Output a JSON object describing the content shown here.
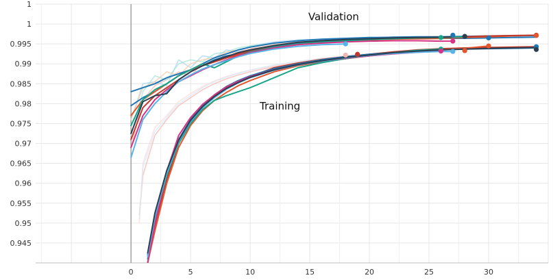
{
  "chart_data": {
    "type": "line",
    "title": "",
    "xlabel": "",
    "ylabel": "",
    "xlim": [
      -8,
      35
    ],
    "ylim": [
      0.94,
      1.005
    ],
    "x_ticks": [
      "0",
      "5",
      "10",
      "15",
      "20",
      "25",
      "30"
    ],
    "x_tick_values": [
      0,
      5,
      10,
      15,
      20,
      25,
      30
    ],
    "y_ticks": [
      "1",
      "1",
      "0.995",
      "0.99",
      "0.985",
      "0.98",
      "0.975",
      "0.97",
      "0.965",
      "0.96",
      "0.955",
      "0.95",
      "0.945"
    ],
    "y_tick_values": [
      1.005,
      1.0,
      0.995,
      0.99,
      0.985,
      0.98,
      0.975,
      0.97,
      0.965,
      0.96,
      0.955,
      0.95,
      0.945
    ],
    "grid": true,
    "annotations": [
      {
        "text": "Validation",
        "x": 17,
        "y": 1.001
      },
      {
        "text": "Training",
        "x": 12.5,
        "y": 0.9785
      }
    ],
    "x_vertical_line": 0,
    "validation_series": [
      {
        "color": "#1f77b4",
        "x": [
          0,
          1,
          2,
          3,
          4,
          5,
          6,
          7,
          8,
          9,
          10,
          12,
          14,
          16,
          18,
          20,
          22,
          24,
          26,
          28,
          30,
          32,
          34
        ],
        "y": [
          0.983,
          0.984,
          0.985,
          0.9865,
          0.9875,
          0.9885,
          0.9895,
          0.991,
          0.992,
          0.9925,
          0.9932,
          0.9945,
          0.9952,
          0.9958,
          0.9962,
          0.9965,
          0.9967,
          0.9968,
          0.9968,
          0.9969,
          0.997,
          0.997,
          0.9971
        ]
      },
      {
        "color": "#1f77b4",
        "x": [
          0,
          1,
          2,
          3,
          4,
          5,
          6,
          7,
          8,
          9,
          10,
          12,
          14,
          16,
          18,
          20,
          22,
          24,
          26,
          28,
          30,
          32,
          34
        ],
        "y": [
          0.9795,
          0.9815,
          0.983,
          0.985,
          0.987,
          0.9885,
          0.99,
          0.9915,
          0.9925,
          0.9935,
          0.9942,
          0.9952,
          0.9958,
          0.9962,
          0.9964,
          0.9966,
          0.9966,
          0.9965,
          0.9964,
          0.9964,
          0.9965,
          0.9966,
          0.9967
        ]
      },
      {
        "color": "#e4572e",
        "x": [
          0,
          1,
          2,
          3,
          4,
          5,
          6,
          7,
          8,
          9,
          10,
          12,
          14,
          16,
          18,
          20,
          22,
          24,
          26,
          28,
          30,
          32,
          34
        ],
        "y": [
          0.977,
          0.981,
          0.983,
          0.985,
          0.987,
          0.9885,
          0.9895,
          0.9905,
          0.9915,
          0.9922,
          0.993,
          0.994,
          0.9948,
          0.9953,
          0.9957,
          0.996,
          0.9962,
          0.9963,
          0.9964,
          0.9966,
          0.9968,
          0.997,
          0.9972
        ]
      },
      {
        "color": "#c0392b",
        "x": [
          0,
          1,
          2,
          3,
          4,
          5,
          6,
          7,
          8,
          9,
          10,
          12,
          14,
          16,
          18,
          20,
          22,
          24,
          26,
          28,
          30,
          32,
          34
        ],
        "y": [
          0.971,
          0.979,
          0.982,
          0.984,
          0.986,
          0.988,
          0.9895,
          0.9905,
          0.9915,
          0.9925,
          0.9932,
          0.9942,
          0.995,
          0.9955,
          0.9958,
          0.9961,
          0.9963,
          0.9965,
          0.9966,
          0.9968,
          0.997,
          0.9971,
          0.9972
        ]
      },
      {
        "color": "#17a589",
        "x": [
          0,
          1,
          2,
          3,
          4,
          5,
          6,
          7,
          8,
          9,
          10,
          12,
          14,
          16,
          18,
          20,
          22,
          24,
          26,
          28
        ],
        "y": [
          0.9745,
          0.981,
          0.9835,
          0.985,
          0.987,
          0.9885,
          0.99,
          0.989,
          0.9905,
          0.992,
          0.993,
          0.9942,
          0.995,
          0.9955,
          0.9958,
          0.9961,
          0.9963,
          0.9965,
          0.9966,
          0.9968
        ]
      },
      {
        "color": "#d63384",
        "x": [
          0,
          1,
          2,
          3,
          4,
          5,
          6,
          7,
          8,
          9,
          10,
          12,
          14,
          16,
          18,
          20,
          22,
          24,
          26,
          27
        ],
        "y": [
          0.969,
          0.977,
          0.981,
          0.9835,
          0.9855,
          0.987,
          0.9885,
          0.9898,
          0.991,
          0.992,
          0.9928,
          0.994,
          0.9948,
          0.9952,
          0.9955,
          0.9957,
          0.9958,
          0.9958,
          0.9957,
          0.9957
        ]
      },
      {
        "color": "#56b4e9",
        "x": [
          0,
          1,
          2,
          3,
          4,
          5,
          6,
          7,
          8,
          9,
          10,
          12,
          14,
          16,
          18
        ],
        "y": [
          0.9665,
          0.976,
          0.98,
          0.983,
          0.9855,
          0.9872,
          0.9887,
          0.9898,
          0.9908,
          0.9918,
          0.9926,
          0.9937,
          0.9944,
          0.9948,
          0.995
        ]
      },
      {
        "color": "#2c3e50",
        "x": [
          0,
          1,
          2,
          3,
          4,
          5,
          6,
          7,
          8,
          9,
          10,
          12,
          14,
          16,
          18,
          20,
          22,
          24,
          26,
          27
        ],
        "y": [
          0.9725,
          0.9805,
          0.982,
          0.9825,
          0.986,
          0.988,
          0.9895,
          0.9908,
          0.9918,
          0.9928,
          0.9935,
          0.9946,
          0.9954,
          0.9958,
          0.9961,
          0.9963,
          0.9965,
          0.9966,
          0.9967,
          0.9968
        ]
      }
    ],
    "training_series": [
      {
        "color": "#c0392b",
        "x": [
          1.4,
          2,
          3,
          4,
          5,
          6,
          7,
          8,
          9,
          10,
          12,
          14,
          16,
          18,
          20,
          22,
          24,
          26,
          28,
          30,
          32,
          34
        ],
        "y": [
          0.94,
          0.949,
          0.961,
          0.97,
          0.9755,
          0.979,
          0.9818,
          0.984,
          0.9855,
          0.9868,
          0.989,
          0.9902,
          0.9911,
          0.9918,
          0.9924,
          0.993,
          0.9935,
          0.9938,
          0.994,
          0.9941,
          0.9942,
          0.9943
        ]
      },
      {
        "color": "#e4572e",
        "x": [
          1.4,
          2,
          3,
          4,
          5,
          6,
          7,
          8,
          9,
          10,
          12,
          14,
          16,
          18,
          20,
          22,
          24,
          26,
          28,
          30
        ],
        "y": [
          0.94,
          0.948,
          0.96,
          0.969,
          0.9745,
          0.9782,
          0.9808,
          0.9828,
          0.9845,
          0.9858,
          0.988,
          0.9895,
          0.9905,
          0.9913,
          0.992,
          0.9926,
          0.9932,
          0.9936,
          0.9939,
          0.9945
        ]
      },
      {
        "color": "#1f77b4",
        "x": [
          1.4,
          2,
          3,
          4,
          5,
          6,
          7,
          8,
          9,
          10,
          12,
          14,
          16,
          18,
          20,
          22,
          24,
          26,
          28,
          30,
          32,
          34
        ],
        "y": [
          0.942,
          0.952,
          0.963,
          0.971,
          0.976,
          0.9795,
          0.9822,
          0.9843,
          0.9858,
          0.987,
          0.9888,
          0.99,
          0.991,
          0.9918,
          0.9924,
          0.9928,
          0.9932,
          0.9935,
          0.9937,
          0.9938,
          0.9939,
          0.994
        ]
      },
      {
        "color": "#17a589",
        "x": [
          1.4,
          2,
          3,
          4,
          5,
          6,
          7,
          8,
          9,
          10,
          12,
          14,
          16,
          18,
          20,
          22,
          24,
          26
        ],
        "y": [
          0.941,
          0.9505,
          0.962,
          0.97,
          0.975,
          0.9785,
          0.9808,
          0.982,
          0.983,
          0.984,
          0.9865,
          0.989,
          0.9903,
          0.9913,
          0.9921,
          0.9928,
          0.9934,
          0.9937
        ]
      },
      {
        "color": "#d63384",
        "x": [
          1.4,
          2,
          3,
          4,
          5,
          6,
          7,
          8,
          9,
          10,
          12,
          14,
          16,
          18,
          20,
          22,
          24,
          26
        ],
        "y": [
          0.94,
          0.9495,
          0.963,
          0.972,
          0.9765,
          0.9798,
          0.9822,
          0.9842,
          0.9856,
          0.9868,
          0.9885,
          0.9898,
          0.9907,
          0.9914,
          0.992,
          0.9925,
          0.9929,
          0.9932
        ]
      },
      {
        "color": "#56b4e9",
        "x": [
          1.4,
          2,
          3,
          4,
          5,
          6,
          7,
          8,
          9,
          10,
          12,
          14,
          16,
          18,
          20,
          22,
          24,
          26,
          27
        ],
        "y": [
          0.9415,
          0.9515,
          0.9625,
          0.9705,
          0.9755,
          0.979,
          0.9815,
          0.9836,
          0.9852,
          0.9865,
          0.9884,
          0.9897,
          0.9907,
          0.9915,
          0.9921,
          0.9926,
          0.9929,
          0.9931,
          0.9931
        ]
      },
      {
        "color": "#2c3e50",
        "x": [
          1.4,
          2,
          3,
          4,
          5,
          6,
          7,
          8,
          9,
          10,
          12,
          14,
          16,
          18,
          20,
          22,
          24,
          26,
          28,
          30,
          32,
          34
        ],
        "y": [
          0.9425,
          0.9525,
          0.9632,
          0.9708,
          0.9758,
          0.9792,
          0.9818,
          0.9838,
          0.9853,
          0.9866,
          0.9885,
          0.9898,
          0.9908,
          0.9916,
          0.9922,
          0.9928,
          0.9932,
          0.9935,
          0.9937,
          0.9939,
          0.994,
          0.9941
        ]
      }
    ],
    "faint_validation_series": [
      {
        "color": "#f5b7b1",
        "x": [
          0,
          1,
          2,
          3,
          4,
          5,
          6,
          7,
          8,
          9,
          10,
          12,
          14,
          16,
          18,
          20,
          22,
          24,
          26
        ],
        "y": [
          0.969,
          0.981,
          0.9845,
          0.986,
          0.988,
          0.987,
          0.99,
          0.9905,
          0.9925,
          0.993,
          0.9938,
          0.9947,
          0.9953,
          0.9957,
          0.996,
          0.9962,
          0.9962,
          0.9962,
          0.9962
        ]
      },
      {
        "color": "#aed6f1",
        "x": [
          0,
          1,
          2,
          3,
          4,
          5,
          6,
          7,
          8,
          9,
          10,
          12,
          14,
          16,
          18,
          20,
          22,
          24,
          26
        ],
        "y": [
          0.976,
          0.985,
          0.9855,
          0.9845,
          0.991,
          0.989,
          0.992,
          0.9915,
          0.9935,
          0.993,
          0.9945,
          0.9955,
          0.996,
          0.9962,
          0.9964,
          0.9965,
          0.9966,
          0.9966,
          0.9966
        ]
      },
      {
        "color": "#a3e4d7",
        "x": [
          0,
          1,
          2,
          3,
          4,
          5,
          6,
          7,
          8,
          9,
          10,
          12,
          14,
          16,
          18,
          20,
          22
        ],
        "y": [
          0.972,
          0.983,
          0.987,
          0.986,
          0.99,
          0.991,
          0.9905,
          0.9925,
          0.993,
          0.994,
          0.9945,
          0.9952,
          0.9958,
          0.996,
          0.9963,
          0.9964,
          0.9965
        ]
      },
      {
        "color": "#f5cba7",
        "x": [
          0,
          1,
          2,
          3,
          4,
          5,
          6,
          7,
          8,
          9,
          10,
          12,
          14,
          16,
          18,
          20
        ],
        "y": [
          0.976,
          0.984,
          0.9855,
          0.988,
          0.987,
          0.99,
          0.991,
          0.9915,
          0.993,
          0.9935,
          0.9942,
          0.995,
          0.9955,
          0.9958,
          0.9961,
          0.9963
        ]
      }
    ],
    "faint_training_series": [
      {
        "color": "#f5b7b1",
        "x": [
          0.7,
          1,
          2,
          3,
          4,
          5,
          6,
          7,
          8,
          9,
          10,
          12,
          14,
          16,
          18,
          20,
          22
        ],
        "y": [
          0.952,
          0.962,
          0.972,
          0.976,
          0.9795,
          0.9815,
          0.9835,
          0.985,
          0.9862,
          0.9872,
          0.988,
          0.9893,
          0.9903,
          0.9911,
          0.9918,
          0.9923,
          0.9928
        ]
      },
      {
        "color": "#fadbd8",
        "x": [
          0.7,
          1,
          2,
          3,
          4,
          5,
          6,
          7,
          8,
          9,
          10,
          12,
          14,
          16,
          18,
          20
        ],
        "y": [
          0.95,
          0.965,
          0.974,
          0.977,
          0.9805,
          0.9825,
          0.9843,
          0.9857,
          0.9868,
          0.9877,
          0.9884,
          0.9896,
          0.9906,
          0.9914,
          0.992,
          0.9925
        ]
      },
      {
        "color": "#d6eaf8",
        "x": [
          0.7,
          1,
          2,
          3,
          4,
          5,
          6,
          7,
          8,
          9,
          10,
          12,
          14,
          16,
          18
        ],
        "y": [
          0.951,
          0.964,
          0.973,
          0.9765,
          0.98,
          0.982,
          0.984,
          0.9855,
          0.9866,
          0.9876,
          0.9884,
          0.9897,
          0.9906,
          0.9913,
          0.9918
        ]
      }
    ],
    "end_markers": [
      {
        "color": "#c0392b",
        "x": 34,
        "y": 0.9972
      },
      {
        "color": "#e4572e",
        "x": 34,
        "y": 0.9971
      },
      {
        "color": "#1f77b4",
        "x": 30,
        "y": 0.9965
      },
      {
        "color": "#2c3e50",
        "x": 28,
        "y": 0.9969
      },
      {
        "color": "#1f77b4",
        "x": 27,
        "y": 0.9972
      },
      {
        "color": "#d63384",
        "x": 27,
        "y": 0.9957
      },
      {
        "color": "#17a589",
        "x": 26,
        "y": 0.9966
      },
      {
        "color": "#56b4e9",
        "x": 18,
        "y": 0.995
      },
      {
        "color": "#1f77b4",
        "x": 34,
        "y": 0.9943
      },
      {
        "color": "#2c3e50",
        "x": 34,
        "y": 0.9936
      },
      {
        "color": "#e4572e",
        "x": 30,
        "y": 0.9945
      },
      {
        "color": "#e4572e",
        "x": 28,
        "y": 0.9933
      },
      {
        "color": "#56b4e9",
        "x": 27,
        "y": 0.9931
      },
      {
        "color": "#17a589",
        "x": 26,
        "y": 0.9937
      },
      {
        "color": "#d63384",
        "x": 26,
        "y": 0.9932
      },
      {
        "color": "#c0392b",
        "x": 19,
        "y": 0.9924
      },
      {
        "color": "#f5b7b1",
        "x": 18,
        "y": 0.9922
      }
    ]
  }
}
